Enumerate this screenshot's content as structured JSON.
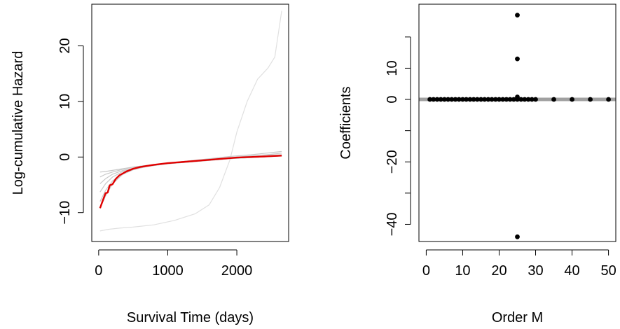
{
  "chart_data": [
    {
      "type": "line",
      "xlabel": "Survival Time (days)",
      "ylabel": "Log-cumulative Hazard",
      "xlim": [
        -100,
        2750
      ],
      "ylim": [
        -15.2,
        27.5
      ],
      "xticks": [
        0,
        1000,
        2000
      ],
      "xtick_labels": [
        "0",
        "1000",
        "2000"
      ],
      "yticks": [
        -10,
        0,
        10,
        20
      ],
      "ytick_labels": [
        "−10",
        "0",
        "10",
        "20"
      ],
      "grid": false,
      "legend": "none",
      "colors": {
        "highlight": "#e00000",
        "light": "#c8c8c8",
        "outlier": "#e0e0e0",
        "axis": "#000000"
      },
      "series": [
        {
          "role": "faint",
          "x": [
            20,
            100,
            200,
            350,
            500,
            700,
            1000,
            1300,
            1600,
            1900,
            2200,
            2500,
            2650
          ],
          "y": [
            -2.7,
            -2.6,
            -2.4,
            -2.1,
            -1.8,
            -1.5,
            -1.1,
            -0.7,
            -0.3,
            0.1,
            0.4,
            0.8,
            1.0
          ]
        },
        {
          "role": "faint",
          "x": [
            20,
            100,
            200,
            350,
            500,
            700,
            1000,
            1300,
            1600,
            1900,
            2200,
            2500,
            2650
          ],
          "y": [
            -3.6,
            -3.1,
            -2.7,
            -2.2,
            -1.8,
            -1.5,
            -1.1,
            -0.7,
            -0.4,
            -0.1,
            0.2,
            0.5,
            0.7
          ]
        },
        {
          "role": "faint",
          "x": [
            20,
            100,
            200,
            350,
            500,
            700,
            1000,
            1300,
            1600,
            1900,
            2200,
            2500,
            2650
          ],
          "y": [
            -4.8,
            -3.9,
            -3.1,
            -2.4,
            -2.0,
            -1.6,
            -1.1,
            -0.8,
            -0.5,
            -0.2,
            0.0,
            0.3,
            0.4
          ]
        },
        {
          "role": "faint",
          "x": [
            20,
            100,
            200,
            350,
            500,
            700,
            1000,
            1300,
            1600,
            1900,
            2200,
            2500,
            2650
          ],
          "y": [
            -6.3,
            -4.8,
            -3.6,
            -2.6,
            -2.1,
            -1.6,
            -1.2,
            -0.9,
            -0.6,
            -0.3,
            -0.1,
            0.1,
            0.2
          ]
        },
        {
          "role": "faint",
          "x": [
            20,
            100,
            200,
            350,
            500,
            700,
            1000,
            1300,
            1600,
            1900,
            2200,
            2500,
            2650
          ],
          "y": [
            -8.0,
            -6.0,
            -4.3,
            -2.9,
            -2.2,
            -1.7,
            -1.2,
            -0.9,
            -0.6,
            -0.3,
            -0.1,
            0.1,
            0.2
          ]
        },
        {
          "role": "faint",
          "x": [
            20,
            100,
            200,
            350,
            500,
            700,
            1000,
            1300,
            1600,
            1900,
            2200,
            2500,
            2650
          ],
          "y": [
            -9.2,
            -7.0,
            -4.8,
            -3.1,
            -2.3,
            -1.7,
            -1.2,
            -0.9,
            -0.6,
            -0.3,
            -0.1,
            0.1,
            0.2
          ]
        },
        {
          "role": "outlier",
          "x": [
            20,
            150,
            300,
            500,
            800,
            1100,
            1400,
            1600,
            1750,
            1900,
            2000,
            2150,
            2300,
            2450,
            2550,
            2650
          ],
          "y": [
            -13.3,
            -13.0,
            -12.8,
            -12.6,
            -12.2,
            -11.4,
            -10.2,
            -8.6,
            -5.5,
            -0.5,
            4.5,
            10.0,
            14.0,
            16.0,
            18.0,
            26.3
          ]
        },
        {
          "role": "highlight",
          "x": [
            20,
            60,
            100,
            130,
            160,
            200,
            250,
            300,
            400,
            500,
            600,
            800,
            1000,
            1200,
            1400,
            1600,
            1800,
            2000,
            2200,
            2400,
            2650
          ],
          "y": [
            -9.2,
            -7.8,
            -6.5,
            -6.4,
            -5.1,
            -4.9,
            -3.9,
            -3.3,
            -2.6,
            -2.1,
            -1.8,
            -1.4,
            -1.1,
            -0.9,
            -0.7,
            -0.5,
            -0.3,
            -0.1,
            0.0,
            0.1,
            0.25
          ]
        }
      ]
    },
    {
      "type": "scatter",
      "xlabel": "Order M",
      "ylabel": "Coefficients",
      "xlim": [
        -2,
        52
      ],
      "ylim": [
        -45.5,
        30.5
      ],
      "xticks": [
        0,
        10,
        20,
        30,
        40,
        50
      ],
      "xtick_labels": [
        "0",
        "10",
        "20",
        "30",
        "40",
        "50"
      ],
      "yticks": [
        -40,
        -30,
        -20,
        -10,
        0,
        10,
        20
      ],
      "ytick_labels": [
        "−40",
        "",
        "−20",
        "",
        "0",
        "10",
        ""
      ],
      "grid": false,
      "legend": "none",
      "colors": {
        "points": "#000000",
        "reference_line": "#a0a0a0"
      },
      "reference_line_y": 0,
      "points": [
        [
          1,
          0
        ],
        [
          2,
          0
        ],
        [
          3,
          0
        ],
        [
          4,
          0
        ],
        [
          5,
          0
        ],
        [
          6,
          0
        ],
        [
          7,
          0
        ],
        [
          8,
          0
        ],
        [
          9,
          0
        ],
        [
          10,
          0
        ],
        [
          11,
          0
        ],
        [
          12,
          0
        ],
        [
          13,
          0
        ],
        [
          14,
          0
        ],
        [
          15,
          0
        ],
        [
          16,
          0
        ],
        [
          17,
          0
        ],
        [
          18,
          0
        ],
        [
          19,
          0
        ],
        [
          20,
          0
        ],
        [
          21,
          0
        ],
        [
          22,
          0
        ],
        [
          23,
          0
        ],
        [
          24,
          0
        ],
        [
          25,
          0
        ],
        [
          25,
          0.8
        ],
        [
          25,
          13
        ],
        [
          25,
          27
        ],
        [
          25,
          -44
        ],
        [
          26,
          0
        ],
        [
          27,
          0
        ],
        [
          28,
          0
        ],
        [
          29,
          0
        ],
        [
          30,
          0
        ],
        [
          35,
          0
        ],
        [
          40,
          0
        ],
        [
          45,
          0
        ],
        [
          50,
          0
        ]
      ]
    }
  ]
}
